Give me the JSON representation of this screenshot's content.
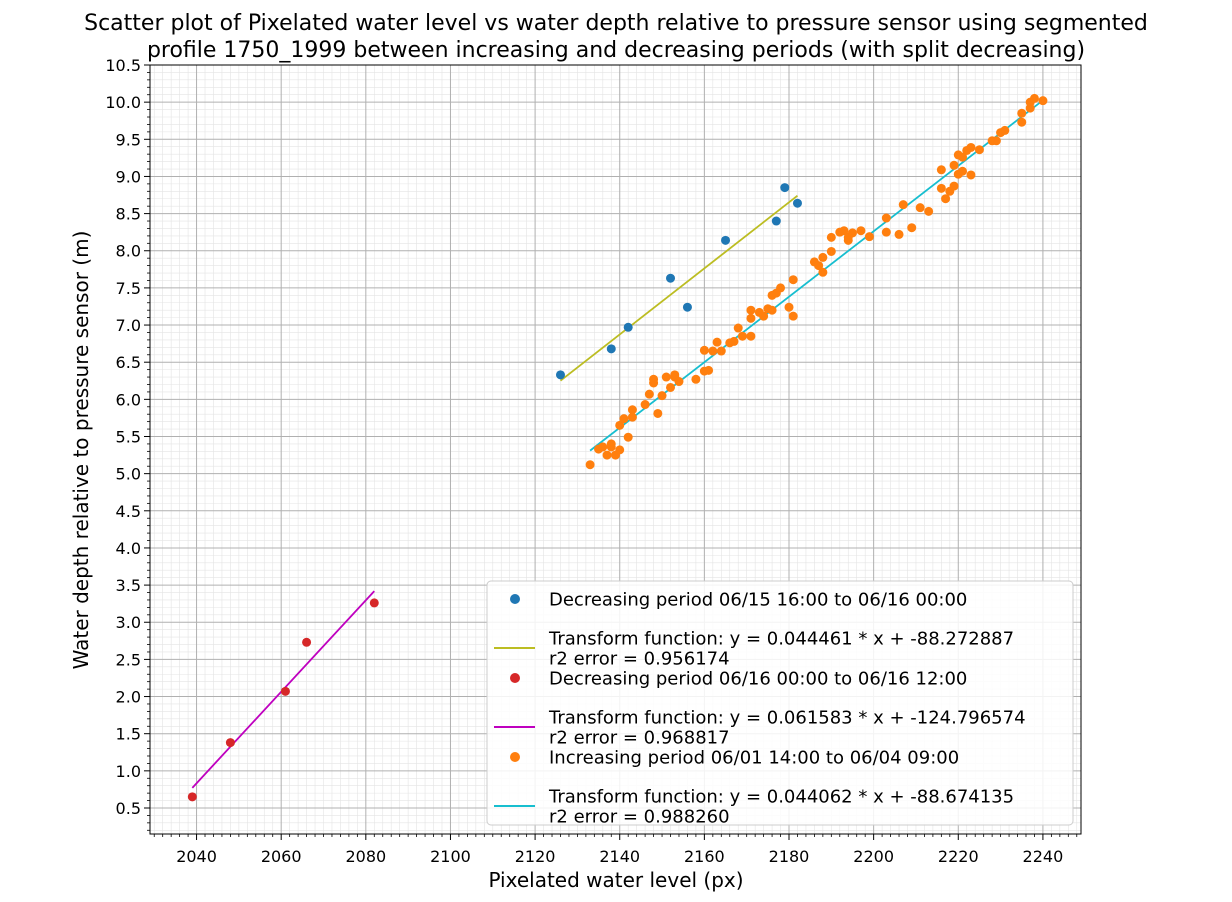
{
  "chart_data": {
    "type": "scatter",
    "title": "Scatter plot of Pixelated water level vs water depth relative to pressure sensor using segmented profile 1750_1999 between increasing and decreasing periods (with split decreasing)",
    "title_lines": [
      "Scatter plot of Pixelated water level vs water depth relative to pressure sensor using segmented",
      "profile 1750_1999 between increasing and decreasing periods (with split decreasing)"
    ],
    "xlabel": "Pixelated water level (px)",
    "ylabel": "Water depth relative to pressure sensor (m)",
    "xlim": [
      2029,
      2249
    ],
    "ylim": [
      0.15,
      10.5
    ],
    "x_ticks": [
      2040,
      2060,
      2080,
      2100,
      2120,
      2140,
      2160,
      2180,
      2200,
      2220,
      2240
    ],
    "y_ticks": [
      0.5,
      1.0,
      1.5,
      2.0,
      2.5,
      3.0,
      3.5,
      4.0,
      4.5,
      5.0,
      5.5,
      6.0,
      6.5,
      7.0,
      7.5,
      8.0,
      8.5,
      9.0,
      9.5,
      10.0,
      10.5
    ],
    "grid": true,
    "legend_position": "lower-right",
    "series": [
      {
        "name": "Decreasing period 06/15 16:00 to 06/16 00:00",
        "kind": "scatter",
        "color": "#1f77b4",
        "points": [
          [
            2126,
            6.33
          ],
          [
            2138,
            6.68
          ],
          [
            2142,
            6.97
          ],
          [
            2152,
            7.63
          ],
          [
            2156,
            7.24
          ],
          [
            2165,
            8.14
          ],
          [
            2177,
            8.4
          ],
          [
            2179,
            8.85
          ],
          [
            2182,
            8.64
          ]
        ]
      },
      {
        "name": "Transform function: y = 0.044461 * x + -88.272887",
        "name_line2": "r2 error = 0.956174",
        "kind": "line",
        "color": "#bcbd22",
        "slope": 0.044461,
        "intercept": -88.272887,
        "x_range": [
          2126,
          2182
        ]
      },
      {
        "name": "Decreasing period 06/16 00:00 to 06/16 12:00",
        "kind": "scatter",
        "color": "#d62728",
        "points": [
          [
            2039,
            0.65
          ],
          [
            2048,
            1.38
          ],
          [
            2061,
            2.07
          ],
          [
            2066,
            2.73
          ],
          [
            2082,
            3.26
          ]
        ]
      },
      {
        "name": "Transform function: y = 0.061583 * x + -124.796574",
        "name_line2": "r2 error = 0.968817",
        "kind": "line",
        "color": "#bf00bf",
        "slope": 0.061583,
        "intercept": -124.796574,
        "x_range": [
          2039,
          2082
        ]
      },
      {
        "name": "Increasing period 06/01 14:00 to 06/04 09:00",
        "kind": "scatter",
        "color": "#ff7f0e",
        "points": [
          [
            2133,
            5.12
          ],
          [
            2135,
            5.33
          ],
          [
            2136,
            5.36
          ],
          [
            2137,
            5.25
          ],
          [
            2138,
            5.36
          ],
          [
            2138,
            5.4
          ],
          [
            2139,
            5.25
          ],
          [
            2140,
            5.32
          ],
          [
            2140,
            5.65
          ],
          [
            2141,
            5.74
          ],
          [
            2142,
            5.49
          ],
          [
            2143,
            5.76
          ],
          [
            2143,
            5.86
          ],
          [
            2146,
            5.93
          ],
          [
            2147,
            6.07
          ],
          [
            2148,
            6.22
          ],
          [
            2148,
            6.27
          ],
          [
            2149,
            5.81
          ],
          [
            2150,
            6.05
          ],
          [
            2151,
            6.3
          ],
          [
            2152,
            6.16
          ],
          [
            2153,
            6.3
          ],
          [
            2153,
            6.33
          ],
          [
            2154,
            6.24
          ],
          [
            2158,
            6.27
          ],
          [
            2160,
            6.38
          ],
          [
            2160,
            6.66
          ],
          [
            2161,
            6.39
          ],
          [
            2162,
            6.65
          ],
          [
            2163,
            6.77
          ],
          [
            2164,
            6.65
          ],
          [
            2166,
            6.76
          ],
          [
            2167,
            6.78
          ],
          [
            2168,
            6.96
          ],
          [
            2169,
            6.85
          ],
          [
            2171,
            6.85
          ],
          [
            2171,
            7.09
          ],
          [
            2171,
            7.2
          ],
          [
            2173,
            7.17
          ],
          [
            2174,
            7.12
          ],
          [
            2175,
            7.22
          ],
          [
            2176,
            7.4
          ],
          [
            2176,
            7.2
          ],
          [
            2177,
            7.43
          ],
          [
            2178,
            7.5
          ],
          [
            2180,
            7.24
          ],
          [
            2181,
            7.12
          ],
          [
            2181,
            7.61
          ],
          [
            2186,
            7.85
          ],
          [
            2187,
            7.8
          ],
          [
            2188,
            7.71
          ],
          [
            2188,
            7.91
          ],
          [
            2190,
            7.99
          ],
          [
            2190,
            8.18
          ],
          [
            2192,
            8.25
          ],
          [
            2193,
            8.27
          ],
          [
            2194,
            8.14
          ],
          [
            2194,
            8.18
          ],
          [
            2195,
            8.24
          ],
          [
            2197,
            8.27
          ],
          [
            2199,
            8.19
          ],
          [
            2203,
            8.25
          ],
          [
            2203,
            8.44
          ],
          [
            2206,
            8.22
          ],
          [
            2207,
            8.62
          ],
          [
            2209,
            8.31
          ],
          [
            2211,
            8.58
          ],
          [
            2213,
            8.53
          ],
          [
            2216,
            9.09
          ],
          [
            2216,
            8.84
          ],
          [
            2217,
            8.7
          ],
          [
            2218,
            8.8
          ],
          [
            2219,
            8.87
          ],
          [
            2219,
            9.15
          ],
          [
            2220,
            9.29
          ],
          [
            2220,
            9.03
          ],
          [
            2221,
            9.07
          ],
          [
            2221,
            9.26
          ],
          [
            2222,
            9.35
          ],
          [
            2223,
            9.02
          ],
          [
            2223,
            9.39
          ],
          [
            2225,
            9.36
          ],
          [
            2228,
            9.48
          ],
          [
            2229,
            9.48
          ],
          [
            2230,
            9.59
          ],
          [
            2231,
            9.62
          ],
          [
            2235,
            9.73
          ],
          [
            2235,
            9.85
          ],
          [
            2237,
            9.92
          ],
          [
            2237,
            10.0
          ],
          [
            2238,
            10.05
          ],
          [
            2240,
            10.02
          ]
        ]
      },
      {
        "name": "Transform function: y = 0.044062 * x + -88.674135",
        "name_line2": "r2 error = 0.988260",
        "kind": "line",
        "color": "#17becf",
        "slope": 0.044062,
        "intercept": -88.674135,
        "x_range": [
          2133,
          2240
        ]
      }
    ]
  }
}
